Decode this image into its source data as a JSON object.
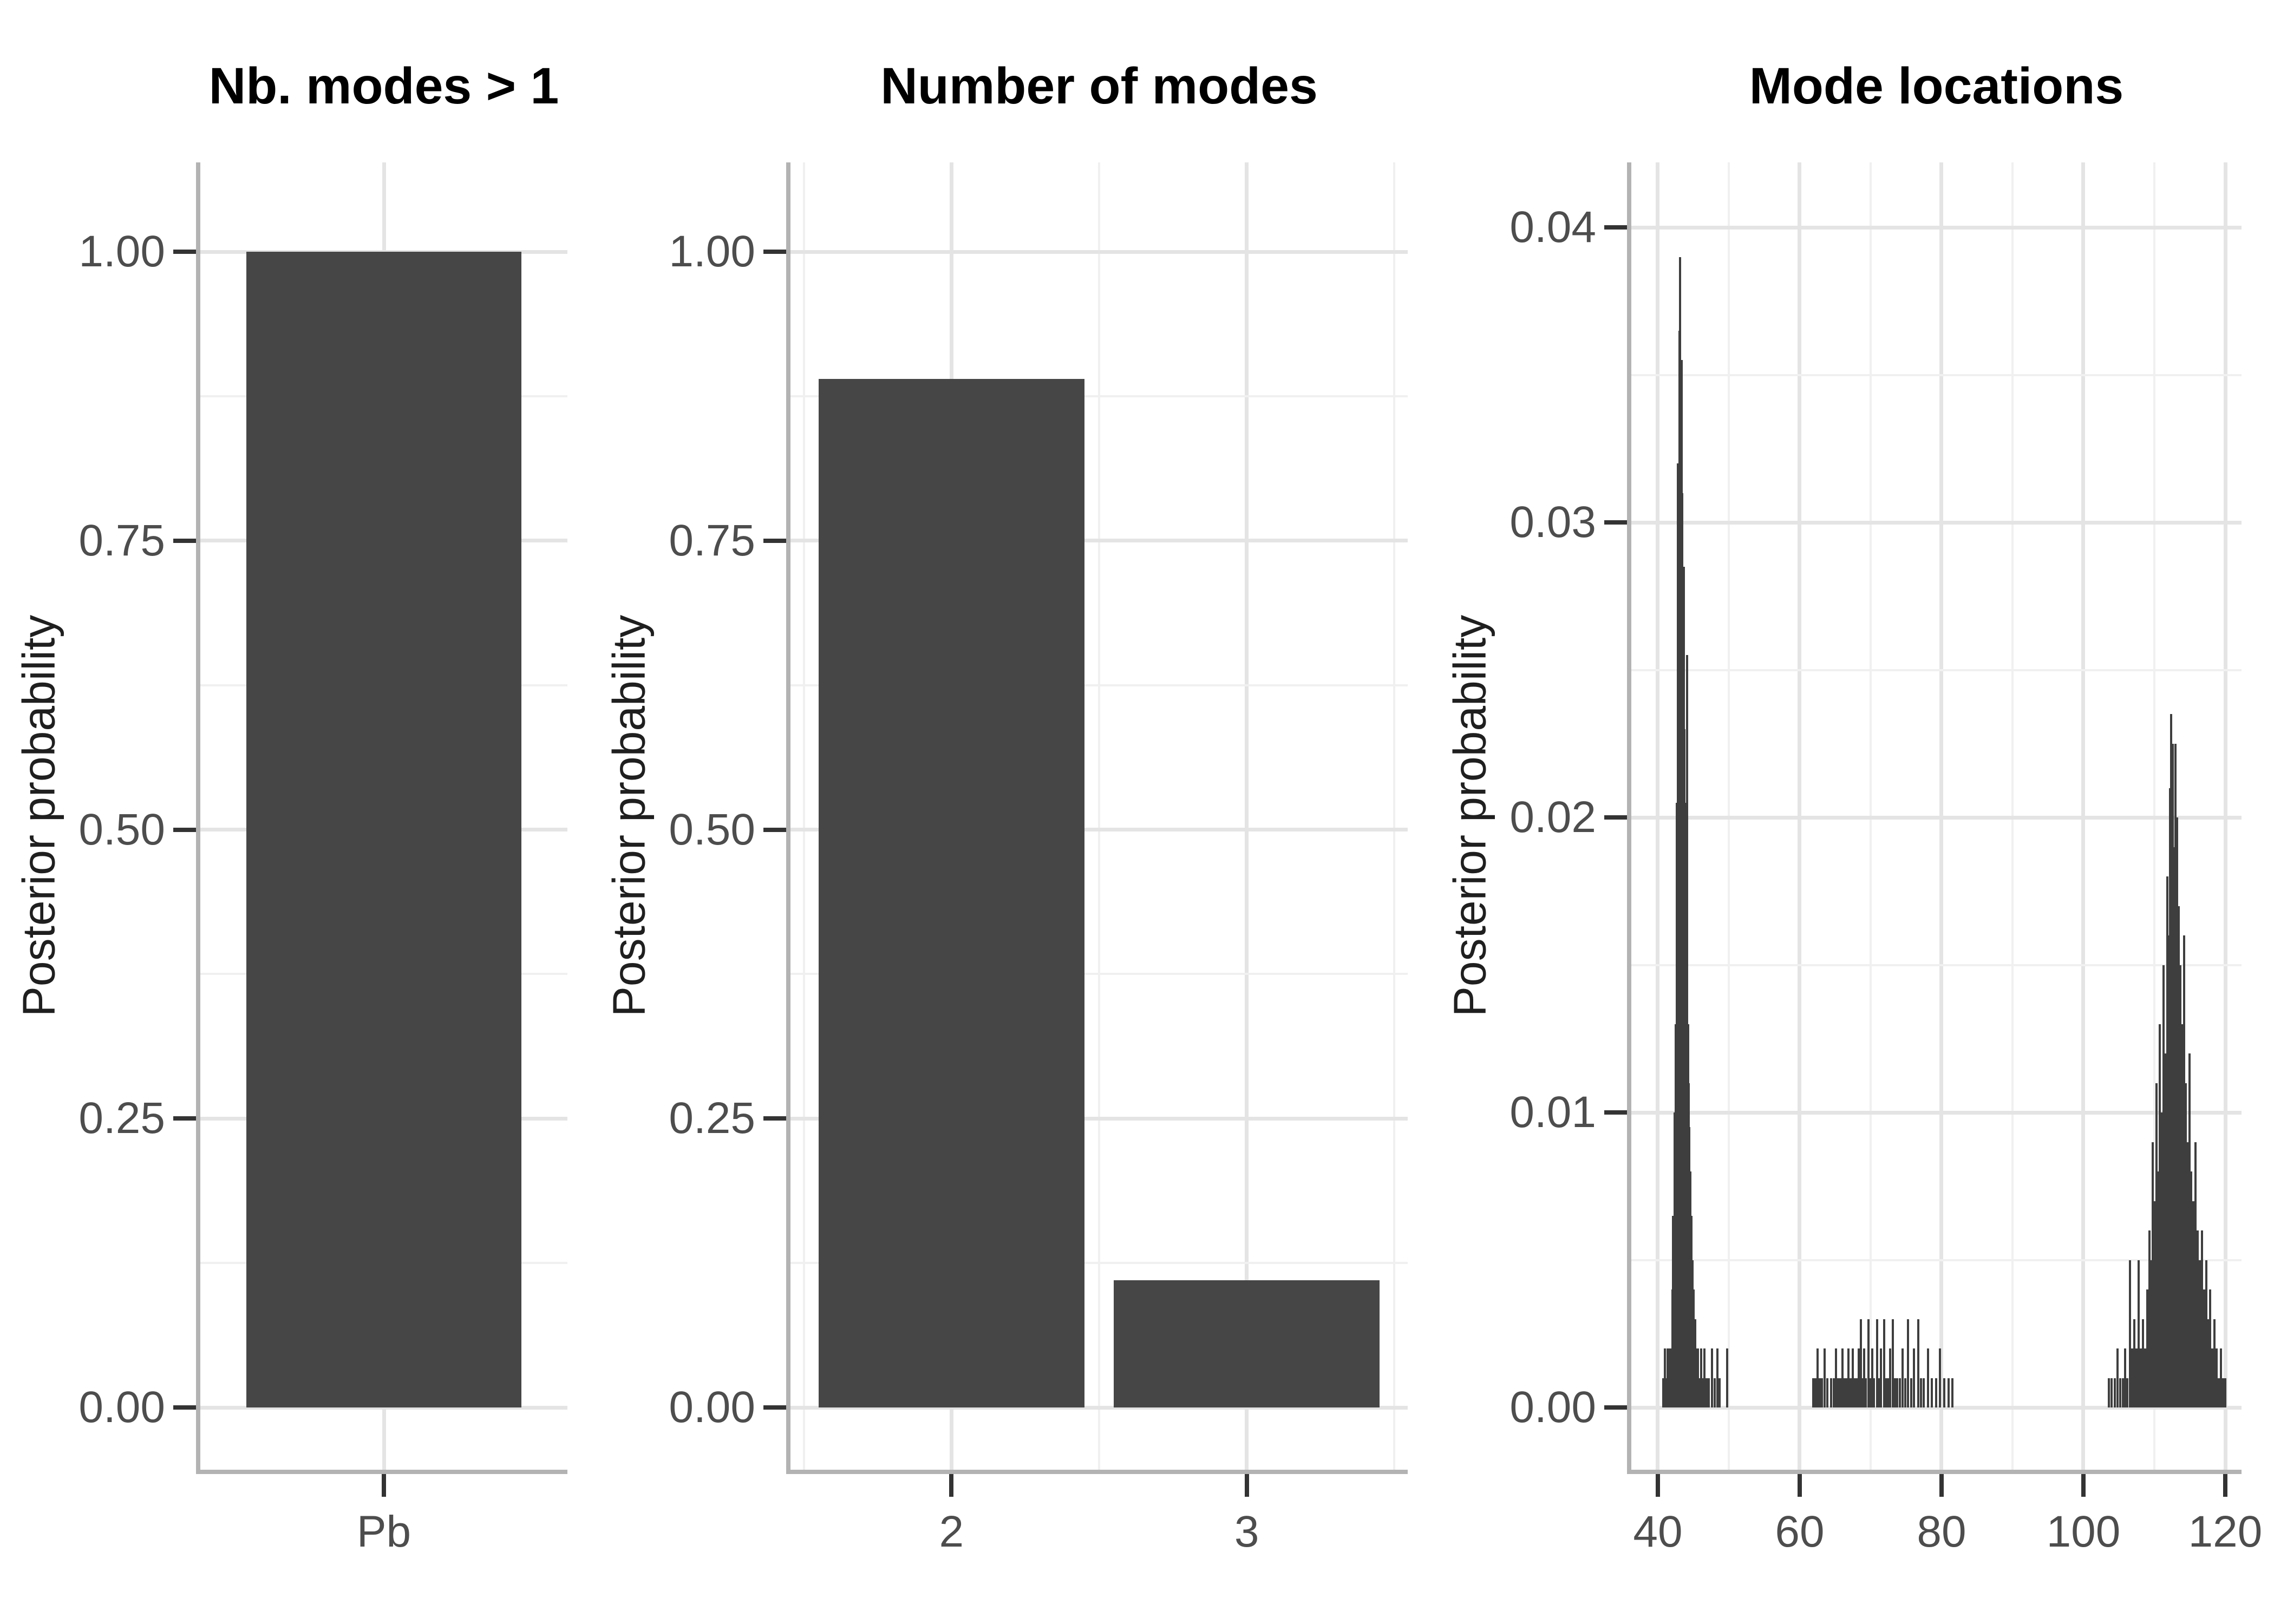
{
  "figure": {
    "background": "#ffffff",
    "n_panels": 3,
    "legend": "none"
  },
  "colors": {
    "bar_fill": "#464646",
    "spike": "#3e3e3e",
    "grid_major": "#e4e4e4",
    "grid_minor": "#f0f0f0",
    "axis_line": "#b3b3b3",
    "tick_mark": "#333333",
    "tick_label": "#4d4d4d",
    "axis_title": "#1f1f1f",
    "plot_title": "#000000"
  },
  "chart_data": [
    {
      "type": "bar",
      "title": "Nb. modes > 1",
      "ylabel": "Posterior probability",
      "xlabel": "",
      "categories": [
        "Pb"
      ],
      "values": [
        1.0
      ],
      "bar_width": 0.9,
      "ylim": [
        0,
        1.0
      ],
      "grid": "major+minor",
      "legend": "none",
      "y_major_breaks": [
        0,
        0.25,
        0.5,
        0.75,
        1.0
      ],
      "y_minor_breaks": [
        0.125,
        0.375,
        0.625,
        0.875
      ],
      "y_tick_labels": [
        "0.00",
        "0.25",
        "0.50",
        "0.75",
        "1.00"
      ],
      "x_tick_labels": [
        "Pb"
      ]
    },
    {
      "type": "bar",
      "title": "Number of modes",
      "ylabel": "Posterior probability",
      "xlabel": "",
      "categories": [
        "2",
        "3"
      ],
      "values": [
        0.89,
        0.11
      ],
      "bar_width": 0.9,
      "ylim": [
        0,
        1.0
      ],
      "grid": "major+minor",
      "legend": "none",
      "y_major_breaks": [
        0,
        0.25,
        0.5,
        0.75,
        1.0
      ],
      "y_minor_breaks": [
        0.125,
        0.375,
        0.625,
        0.875
      ],
      "y_tick_labels": [
        "0.00",
        "0.25",
        "0.50",
        "0.75",
        "1.00"
      ],
      "x_major_break_values": [
        2,
        3
      ],
      "x_minor_break_values": [
        1.5,
        2.5,
        3.5
      ],
      "x_tick_labels": [
        "2",
        "3"
      ]
    },
    {
      "type": "bar",
      "subtype": "thin-spike-histogram",
      "title": "Mode locations",
      "ylabel": "Posterior probability",
      "xlabel": "",
      "xlim": [
        36.3,
        122.3
      ],
      "ylim": [
        0,
        0.04
      ],
      "grid": "major+minor",
      "legend": "none",
      "y_major_breaks": [
        0,
        0.01,
        0.02,
        0.03,
        0.04
      ],
      "y_minor_breaks": [
        0.005,
        0.015,
        0.025,
        0.035
      ],
      "y_tick_labels": [
        "0.00",
        "0.01",
        "0.02",
        "0.03",
        "0.04"
      ],
      "x_major_break_values": [
        40,
        60,
        80,
        100,
        120
      ],
      "x_minor_break_values": [
        50,
        70,
        90,
        110
      ],
      "x_tick_labels": [
        "40",
        "60",
        "80",
        "100",
        "120"
      ],
      "spike_height_unit": 0.001,
      "spikes": [
        [
          40.75,
          1
        ],
        [
          41.0,
          2
        ],
        [
          41.2,
          1
        ],
        [
          41.35,
          2
        ],
        [
          41.5,
          1
        ],
        [
          41.65,
          2
        ],
        [
          41.8,
          1
        ],
        [
          41.95,
          2
        ],
        [
          42.05,
          4
        ],
        [
          42.15,
          6.5
        ],
        [
          42.25,
          3
        ],
        [
          42.35,
          10
        ],
        [
          42.45,
          2
        ],
        [
          42.55,
          13
        ],
        [
          42.65,
          20.5
        ],
        [
          42.75,
          16
        ],
        [
          42.85,
          32
        ],
        [
          42.95,
          28
        ],
        [
          43.05,
          36.5
        ],
        [
          43.15,
          39
        ],
        [
          43.25,
          34
        ],
        [
          43.35,
          35.5
        ],
        [
          43.45,
          31
        ],
        [
          43.55,
          25.5
        ],
        [
          43.65,
          28.5
        ],
        [
          43.75,
          23
        ],
        [
          43.85,
          20.5
        ],
        [
          43.95,
          18.5
        ],
        [
          44.05,
          15
        ],
        [
          44.15,
          25.5
        ],
        [
          44.25,
          13
        ],
        [
          44.35,
          11
        ],
        [
          44.45,
          9.5
        ],
        [
          44.6,
          8
        ],
        [
          44.75,
          6.5
        ],
        [
          44.9,
          5
        ],
        [
          45.05,
          4
        ],
        [
          45.25,
          3
        ],
        [
          45.45,
          2
        ],
        [
          45.65,
          2
        ],
        [
          45.85,
          1
        ],
        [
          46.1,
          2
        ],
        [
          46.35,
          1
        ],
        [
          46.6,
          2
        ],
        [
          46.9,
          1
        ],
        [
          47.2,
          1
        ],
        [
          47.6,
          2
        ],
        [
          48.0,
          1
        ],
        [
          48.4,
          2
        ],
        [
          48.7,
          1
        ],
        [
          49.8,
          2
        ],
        [
          61.9,
          1
        ],
        [
          62.2,
          1
        ],
        [
          62.5,
          2
        ],
        [
          62.8,
          1
        ],
        [
          63.1,
          1
        ],
        [
          63.5,
          2
        ],
        [
          63.9,
          1
        ],
        [
          64.4,
          1
        ],
        [
          64.8,
          1
        ],
        [
          65.1,
          2
        ],
        [
          65.4,
          1
        ],
        [
          65.7,
          1
        ],
        [
          66.0,
          2
        ],
        [
          66.3,
          1
        ],
        [
          66.6,
          1
        ],
        [
          66.9,
          2
        ],
        [
          67.2,
          1
        ],
        [
          67.5,
          2
        ],
        [
          67.8,
          1
        ],
        [
          68.1,
          1
        ],
        [
          68.35,
          2
        ],
        [
          68.6,
          3
        ],
        [
          68.85,
          1
        ],
        [
          69.1,
          2
        ],
        [
          69.35,
          1
        ],
        [
          69.7,
          3
        ],
        [
          69.95,
          1
        ],
        [
          70.2,
          2
        ],
        [
          70.45,
          1
        ],
        [
          70.9,
          3
        ],
        [
          71.15,
          1
        ],
        [
          71.45,
          2
        ],
        [
          71.9,
          3
        ],
        [
          72.15,
          1
        ],
        [
          72.45,
          1
        ],
        [
          72.75,
          2
        ],
        [
          73.1,
          3
        ],
        [
          73.4,
          1
        ],
        [
          73.75,
          1
        ],
        [
          74.1,
          1
        ],
        [
          74.5,
          2
        ],
        [
          74.9,
          1
        ],
        [
          75.3,
          3
        ],
        [
          75.7,
          1
        ],
        [
          76.1,
          2
        ],
        [
          76.7,
          3
        ],
        [
          77.1,
          1
        ],
        [
          77.5,
          1
        ],
        [
          78.1,
          2
        ],
        [
          78.6,
          1
        ],
        [
          79.2,
          1
        ],
        [
          79.8,
          2
        ],
        [
          80.4,
          1
        ],
        [
          81.0,
          1
        ],
        [
          81.5,
          1
        ],
        [
          103.6,
          1
        ],
        [
          104.0,
          1
        ],
        [
          104.4,
          1
        ],
        [
          104.8,
          2
        ],
        [
          105.2,
          1
        ],
        [
          105.6,
          1
        ],
        [
          105.9,
          2
        ],
        [
          106.2,
          1
        ],
        [
          106.6,
          5
        ],
        [
          106.9,
          2
        ],
        [
          107.2,
          3
        ],
        [
          107.5,
          2
        ],
        [
          107.8,
          5
        ],
        [
          108.1,
          2
        ],
        [
          108.4,
          3
        ],
        [
          108.7,
          2
        ],
        [
          109.0,
          4
        ],
        [
          109.3,
          6
        ],
        [
          109.55,
          5
        ],
        [
          109.8,
          9
        ],
        [
          110.05,
          7
        ],
        [
          110.3,
          11
        ],
        [
          110.55,
          8
        ],
        [
          110.8,
          13
        ],
        [
          111.05,
          10
        ],
        [
          111.3,
          15
        ],
        [
          111.55,
          12
        ],
        [
          111.8,
          18
        ],
        [
          112.0,
          16
        ],
        [
          112.2,
          21
        ],
        [
          112.4,
          23.5
        ],
        [
          112.6,
          22.5
        ],
        [
          112.8,
          19
        ],
        [
          113.0,
          22.5
        ],
        [
          113.2,
          20
        ],
        [
          113.45,
          17
        ],
        [
          113.7,
          15
        ],
        [
          113.95,
          13
        ],
        [
          114.2,
          16
        ],
        [
          114.45,
          11
        ],
        [
          114.7,
          9
        ],
        [
          114.95,
          12
        ],
        [
          115.2,
          8
        ],
        [
          115.5,
          7
        ],
        [
          115.8,
          9
        ],
        [
          116.1,
          6
        ],
        [
          116.4,
          5
        ],
        [
          116.7,
          6
        ],
        [
          117.0,
          4
        ],
        [
          117.3,
          5
        ],
        [
          117.6,
          3
        ],
        [
          117.9,
          4
        ],
        [
          118.2,
          2
        ],
        [
          118.5,
          3
        ],
        [
          118.8,
          2
        ],
        [
          119.1,
          1
        ],
        [
          119.4,
          2
        ],
        [
          119.7,
          1
        ],
        [
          120.0,
          1
        ]
      ]
    }
  ]
}
